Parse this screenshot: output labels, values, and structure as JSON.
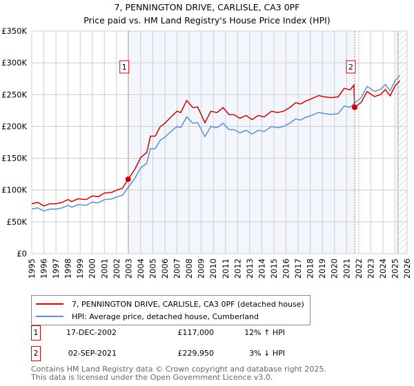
{
  "chart_data": {
    "type": "line",
    "title": "7, PENNINGTON DRIVE, CARLISLE, CA3 0PF",
    "subtitle": "Price paid vs. HM Land Registry's House Price Index (HPI)",
    "xlabel": "",
    "ylabel": "",
    "xlim": [
      1995,
      2026
    ],
    "ylim": [
      0,
      350000
    ],
    "x_ticks": [
      "1995",
      "1996",
      "1997",
      "1998",
      "1999",
      "2000",
      "2001",
      "2002",
      "2003",
      "2004",
      "2005",
      "2006",
      "2007",
      "2008",
      "2009",
      "2010",
      "2011",
      "2012",
      "2013",
      "2014",
      "2015",
      "2016",
      "2017",
      "2018",
      "2019",
      "2020",
      "2021",
      "2022",
      "2023",
      "2024",
      "2025",
      "2026"
    ],
    "y_ticks": [
      {
        "v": 0,
        "label": "£0"
      },
      {
        "v": 50000,
        "label": "£50K"
      },
      {
        "v": 100000,
        "label": "£100K"
      },
      {
        "v": 150000,
        "label": "£150K"
      },
      {
        "v": 200000,
        "label": "£200K"
      },
      {
        "v": 250000,
        "label": "£250K"
      },
      {
        "v": 300000,
        "label": "£300K"
      },
      {
        "v": 350000,
        "label": "£350K"
      }
    ],
    "grid": true,
    "shaded_range": [
      2002.96,
      2021.67
    ],
    "forecast_hatch_from": 2025.25,
    "series": [
      {
        "name": "7, PENNINGTON DRIVE, CARLISLE, CA3 0PF (detached house)",
        "color": "#cc0000",
        "unit": "K",
        "points": [
          [
            1995,
            78.4
          ],
          [
            1995.5,
            80.6
          ],
          [
            1996,
            75
          ],
          [
            1996.5,
            78.4
          ],
          [
            1997,
            78.4
          ],
          [
            1997.5,
            80.6
          ],
          [
            1998,
            85.1
          ],
          [
            1998.3,
            81.8
          ],
          [
            1998.8,
            86.2
          ],
          [
            1999.5,
            85.1
          ],
          [
            2000,
            90.7
          ],
          [
            2000.5,
            89.6
          ],
          [
            2001,
            95.2
          ],
          [
            2001.6,
            96.3
          ],
          [
            2002,
            99.7
          ],
          [
            2002.5,
            103
          ],
          [
            2002.96,
            117
          ],
          [
            2003.5,
            132.2
          ],
          [
            2004,
            151.2
          ],
          [
            2004.5,
            159
          ],
          [
            2004.8,
            184.8
          ],
          [
            2005.2,
            184.8
          ],
          [
            2005.6,
            199.4
          ],
          [
            2006,
            205
          ],
          [
            2006.5,
            215
          ],
          [
            2007,
            224
          ],
          [
            2007.3,
            221.8
          ],
          [
            2007.8,
            240.8
          ],
          [
            2008.3,
            229.6
          ],
          [
            2008.7,
            230.7
          ],
          [
            2009.3,
            206
          ],
          [
            2009.8,
            224
          ],
          [
            2010.3,
            221.8
          ],
          [
            2010.8,
            229.6
          ],
          [
            2011.3,
            218.4
          ],
          [
            2011.7,
            218.4
          ],
          [
            2012.2,
            212.8
          ],
          [
            2012.7,
            217.3
          ],
          [
            2013.2,
            210.6
          ],
          [
            2013.7,
            217.3
          ],
          [
            2014.2,
            215
          ],
          [
            2014.8,
            224
          ],
          [
            2015.3,
            221.8
          ],
          [
            2015.8,
            224
          ],
          [
            2016.3,
            229.6
          ],
          [
            2016.8,
            237.4
          ],
          [
            2017.2,
            235.2
          ],
          [
            2017.6,
            239.7
          ],
          [
            2018.2,
            244.2
          ],
          [
            2018.7,
            248.6
          ],
          [
            2019.2,
            246.4
          ],
          [
            2019.7,
            245.3
          ],
          [
            2020.3,
            246.4
          ],
          [
            2020.8,
            259.8
          ],
          [
            2021.3,
            257.6
          ],
          [
            2021.6,
            265
          ],
          [
            2021.67,
            229.95
          ],
          [
            2022.2,
            237.7
          ],
          [
            2022.7,
            255
          ],
          [
            2023.3,
            247
          ],
          [
            2023.8,
            250
          ],
          [
            2024.2,
            258
          ],
          [
            2024.6,
            248
          ],
          [
            2025,
            264
          ],
          [
            2025.4,
            271.6
          ]
        ]
      },
      {
        "name": "HPI: Average price, detached house, Cumberland",
        "color": "#5b8fd4",
        "unit": "K",
        "points": [
          [
            1995,
            70
          ],
          [
            1995.5,
            72
          ],
          [
            1996,
            67
          ],
          [
            1996.5,
            70
          ],
          [
            1997,
            70
          ],
          [
            1997.5,
            72
          ],
          [
            1998,
            76
          ],
          [
            1998.3,
            73
          ],
          [
            1998.8,
            77
          ],
          [
            1999.5,
            76
          ],
          [
            2000,
            81
          ],
          [
            2000.5,
            80
          ],
          [
            2001,
            85
          ],
          [
            2001.6,
            86
          ],
          [
            2002,
            89
          ],
          [
            2002.5,
            92
          ],
          [
            2002.96,
            104
          ],
          [
            2003.5,
            118
          ],
          [
            2004,
            135
          ],
          [
            2004.5,
            142
          ],
          [
            2004.8,
            165
          ],
          [
            2005.2,
            165
          ],
          [
            2005.6,
            178
          ],
          [
            2006,
            183
          ],
          [
            2006.5,
            192
          ],
          [
            2007,
            200
          ],
          [
            2007.3,
            198
          ],
          [
            2007.8,
            215
          ],
          [
            2008.3,
            205
          ],
          [
            2008.7,
            206
          ],
          [
            2009.3,
            184
          ],
          [
            2009.8,
            200
          ],
          [
            2010.3,
            198
          ],
          [
            2010.8,
            205
          ],
          [
            2011.3,
            195
          ],
          [
            2011.7,
            195
          ],
          [
            2012.2,
            190
          ],
          [
            2012.7,
            194
          ],
          [
            2013.2,
            188
          ],
          [
            2013.7,
            194
          ],
          [
            2014.2,
            192
          ],
          [
            2014.8,
            200
          ],
          [
            2015.3,
            198
          ],
          [
            2015.8,
            200
          ],
          [
            2016.3,
            205
          ],
          [
            2016.8,
            212
          ],
          [
            2017.2,
            210
          ],
          [
            2017.6,
            214
          ],
          [
            2018.2,
            218
          ],
          [
            2018.7,
            222
          ],
          [
            2019.2,
            220
          ],
          [
            2019.7,
            219
          ],
          [
            2020.3,
            220
          ],
          [
            2020.8,
            232
          ],
          [
            2021.3,
            230
          ],
          [
            2021.67,
            237
          ],
          [
            2022.2,
            245
          ],
          [
            2022.7,
            263
          ],
          [
            2023.3,
            255
          ],
          [
            2023.8,
            258
          ],
          [
            2024.2,
            266
          ],
          [
            2024.6,
            256
          ],
          [
            2025,
            272
          ],
          [
            2025.4,
            280
          ]
        ]
      }
    ],
    "annotations": [
      {
        "id": "1",
        "x": 2002.96,
        "y": 117000
      },
      {
        "id": "2",
        "x": 2021.67,
        "y": 229950
      }
    ]
  },
  "legend": {
    "items": [
      "7, PENNINGTON DRIVE, CARLISLE, CA3 0PF (detached house)",
      "HPI: Average price, detached house, Cumberland"
    ]
  },
  "transactions": [
    {
      "id": "1",
      "date": "17-DEC-2002",
      "price": "£117,000",
      "hpi": "12% ↑ HPI"
    },
    {
      "id": "2",
      "date": "02-SEP-2021",
      "price": "£229,950",
      "hpi": "3% ↓ HPI"
    }
  ],
  "footer": {
    "line1": "Contains HM Land Registry data © Crown copyright and database right 2025.",
    "line2": "This data is licensed under the Open Government Licence v3.0."
  }
}
